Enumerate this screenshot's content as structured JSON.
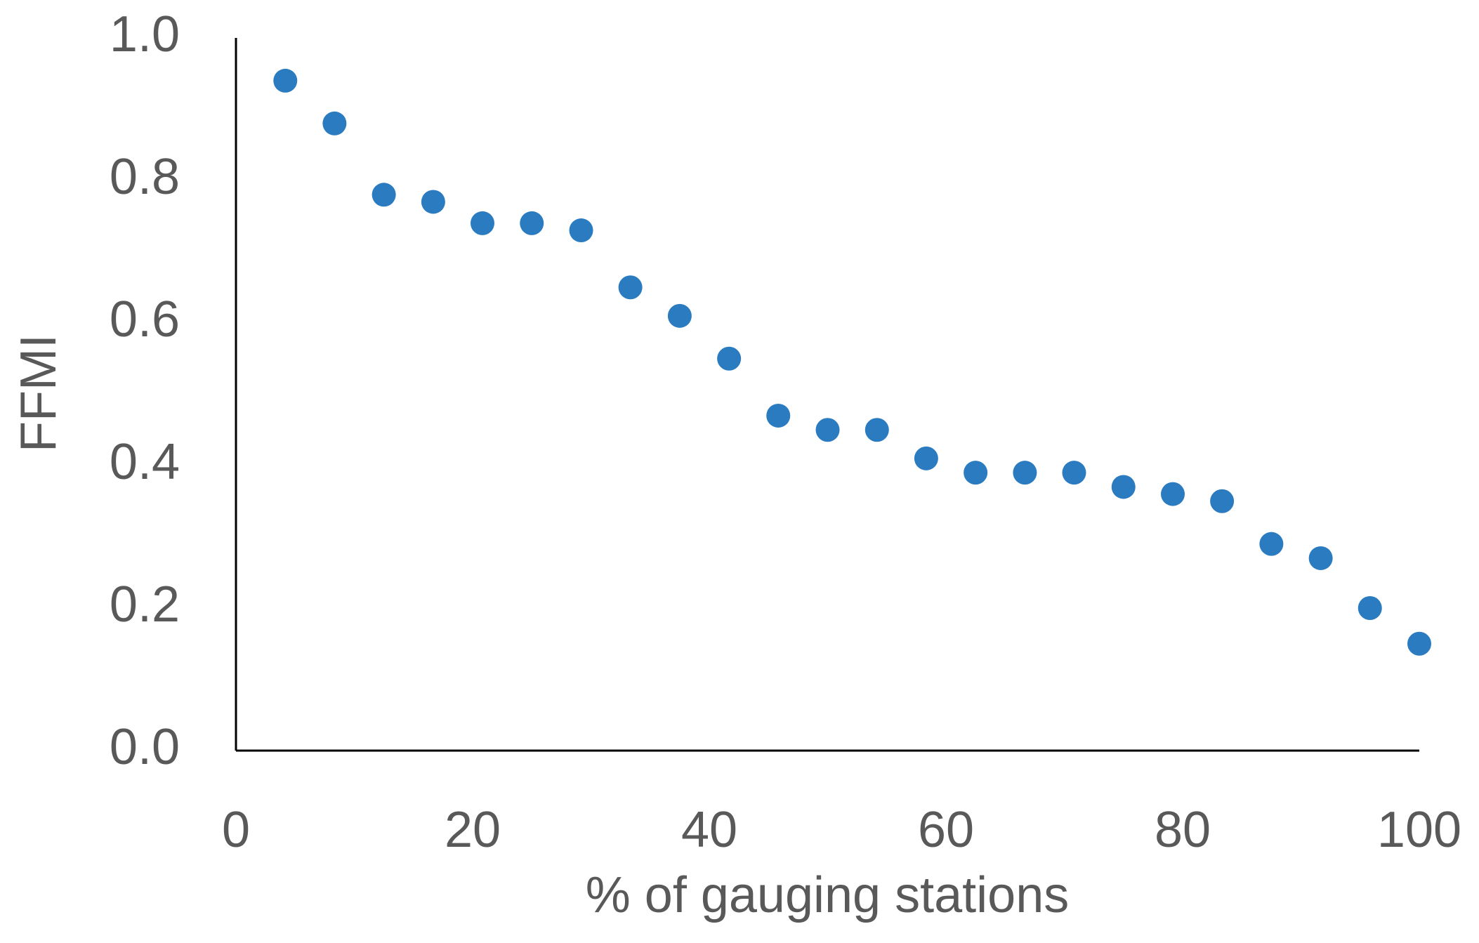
{
  "chart_data": {
    "type": "scatter",
    "x_label": "% of gauging stations",
    "y_label": "FFMI",
    "color": "#2b7bc1",
    "x": [
      4.17,
      8.33,
      12.5,
      16.67,
      20.83,
      25,
      29.17,
      33.33,
      37.5,
      41.67,
      45.83,
      50,
      54.17,
      58.33,
      62.5,
      66.67,
      70.83,
      75,
      79.17,
      83.33,
      87.5,
      91.67,
      95.83,
      100
    ],
    "values": [
      0.94,
      0.88,
      0.78,
      0.77,
      0.74,
      0.74,
      0.73,
      0.65,
      0.61,
      0.55,
      0.47,
      0.45,
      0.45,
      0.41,
      0.39,
      0.39,
      0.39,
      0.37,
      0.36,
      0.35,
      0.29,
      0.27,
      0.2,
      0.15
    ],
    "xlim": [
      0,
      100
    ],
    "xticks": [
      0,
      20,
      40,
      60,
      80,
      100
    ],
    "ylim": [
      0,
      1
    ],
    "yticks": [
      {
        "value": 0,
        "label": "0.0"
      },
      0.2,
      0.4,
      0.6,
      0.8,
      {
        "value": 1,
        "label": "1.0"
      }
    ],
    "grid": false
  }
}
